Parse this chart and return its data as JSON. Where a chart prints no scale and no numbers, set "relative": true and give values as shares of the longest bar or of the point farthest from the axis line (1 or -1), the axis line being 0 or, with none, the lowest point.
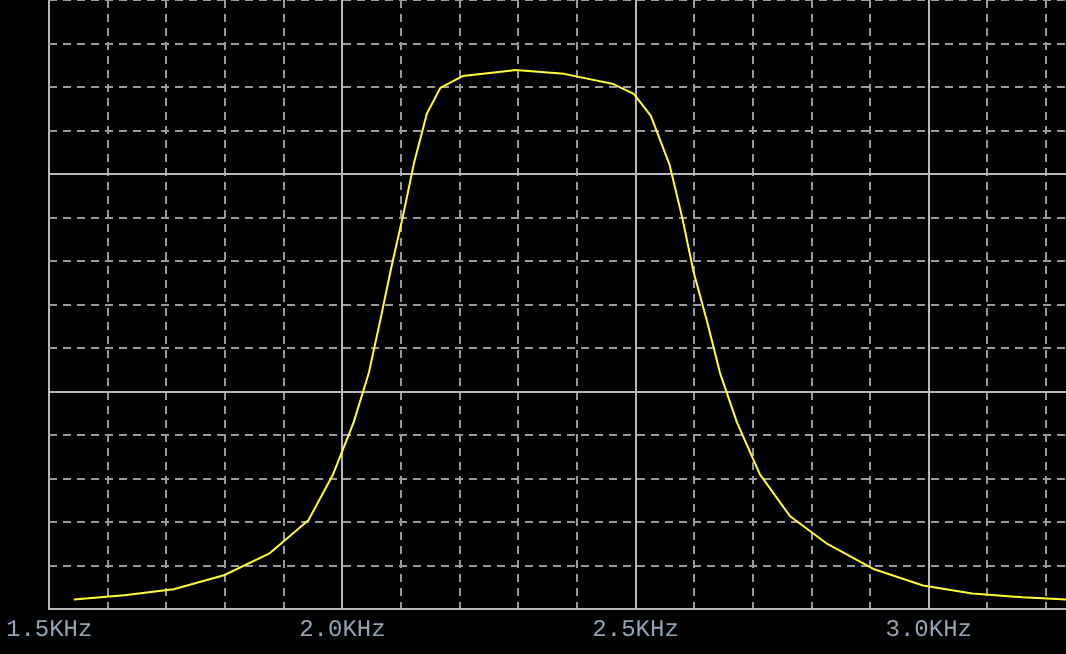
{
  "chart_data": {
    "type": "line",
    "relative": true,
    "grid": true,
    "marker": "none",
    "line_style": "solid",
    "xlim": [
      1.5,
      3.234
    ],
    "xticks": [
      {
        "value": 1.5,
        "label": "1.5KHz"
      },
      {
        "value": 1.6,
        "label": null
      },
      {
        "value": 1.7,
        "label": null
      },
      {
        "value": 1.8,
        "label": null
      },
      {
        "value": 1.9,
        "label": null
      },
      {
        "value": 2.0,
        "label": "2.0KHz"
      },
      {
        "value": 2.1,
        "label": null
      },
      {
        "value": 2.2,
        "label": null
      },
      {
        "value": 2.3,
        "label": null
      },
      {
        "value": 2.4,
        "label": null
      },
      {
        "value": 2.5,
        "label": "2.5KHz"
      },
      {
        "value": 2.6,
        "label": null
      },
      {
        "value": 2.7,
        "label": null
      },
      {
        "value": 2.8,
        "label": null
      },
      {
        "value": 2.9,
        "label": null
      },
      {
        "value": 3.0,
        "label": "3.0KHz"
      },
      {
        "value": 3.1,
        "label": null
      },
      {
        "value": 3.2,
        "label": null
      }
    ],
    "series": [
      {
        "color": "#ffff33",
        "x": [
          1.542,
          1.628,
          1.712,
          1.798,
          1.875,
          1.942,
          1.984,
          2.019,
          2.045,
          2.064,
          2.083,
          2.103,
          2.122,
          2.144,
          2.167,
          2.205,
          2.295,
          2.378,
          2.462,
          2.497,
          2.526,
          2.558,
          2.58,
          2.599,
          2.622,
          2.644,
          2.673,
          2.712,
          2.763,
          2.827,
          2.907,
          2.99,
          3.074,
          3.16,
          3.234
        ],
        "values": [
          0.018,
          0.026,
          0.037,
          0.063,
          0.103,
          0.165,
          0.25,
          0.346,
          0.438,
          0.533,
          0.632,
          0.728,
          0.827,
          0.919,
          0.967,
          0.989,
          1.0,
          0.993,
          0.974,
          0.956,
          0.915,
          0.824,
          0.724,
          0.625,
          0.533,
          0.438,
          0.346,
          0.25,
          0.173,
          0.121,
          0.074,
          0.044,
          0.029,
          0.022,
          0.018
        ]
      }
    ]
  }
}
